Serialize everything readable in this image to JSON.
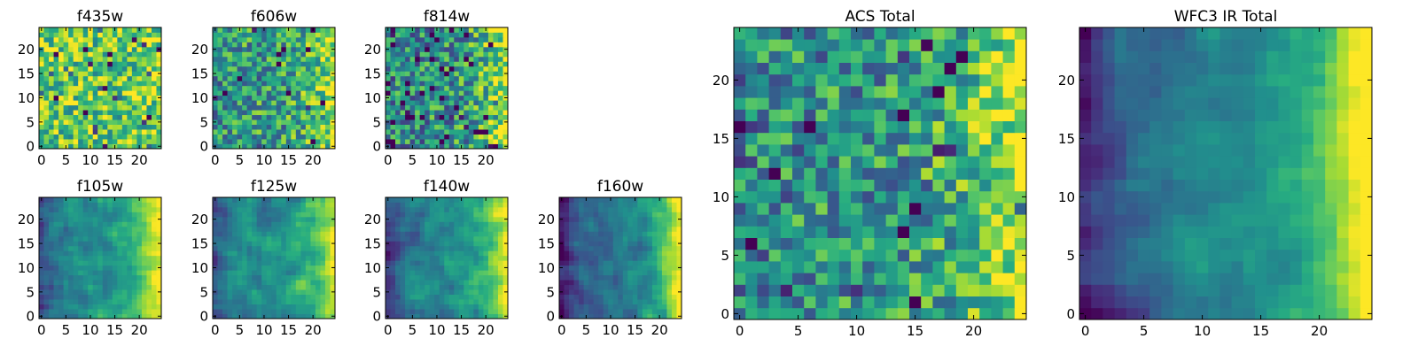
{
  "chart_data": [
    {
      "type": "heatmap",
      "title": "f435w",
      "xticks": [
        0,
        5,
        10,
        15,
        20
      ],
      "yticks": [
        0,
        5,
        10,
        15,
        20
      ],
      "xlim": [
        -0.5,
        24.5
      ],
      "ylim": [
        -0.5,
        24.5
      ],
      "size": 25,
      "colormap": "viridis",
      "grid": false
    },
    {
      "type": "heatmap",
      "title": "f606w",
      "xticks": [
        0,
        5,
        10,
        15,
        20
      ],
      "yticks": [
        0,
        5,
        10,
        15,
        20
      ],
      "xlim": [
        -0.5,
        24.5
      ],
      "ylim": [
        -0.5,
        24.5
      ],
      "size": 25,
      "colormap": "viridis",
      "grid": false
    },
    {
      "type": "heatmap",
      "title": "f814w",
      "xticks": [
        0,
        5,
        10,
        15,
        20
      ],
      "yticks": [
        0,
        5,
        10,
        15,
        20
      ],
      "xlim": [
        -0.5,
        24.5
      ],
      "ylim": [
        -0.5,
        24.5
      ],
      "size": 25,
      "colormap": "viridis",
      "grid": false
    },
    {
      "type": "heatmap",
      "title": "f105w",
      "xticks": [
        0,
        5,
        10,
        15,
        20
      ],
      "yticks": [
        0,
        5,
        10,
        15,
        20
      ],
      "xlim": [
        -0.5,
        24.5
      ],
      "ylim": [
        -0.5,
        24.5
      ],
      "size": 25,
      "colormap": "viridis",
      "grid": false
    },
    {
      "type": "heatmap",
      "title": "f125w",
      "xticks": [
        0,
        5,
        10,
        15,
        20
      ],
      "yticks": [
        0,
        5,
        10,
        15,
        20
      ],
      "xlim": [
        -0.5,
        24.5
      ],
      "ylim": [
        -0.5,
        24.5
      ],
      "size": 25,
      "colormap": "viridis",
      "grid": false
    },
    {
      "type": "heatmap",
      "title": "f140w",
      "xticks": [
        0,
        5,
        10,
        15,
        20
      ],
      "yticks": [
        0,
        5,
        10,
        15,
        20
      ],
      "xlim": [
        -0.5,
        24.5
      ],
      "ylim": [
        -0.5,
        24.5
      ],
      "size": 25,
      "colormap": "viridis",
      "grid": false
    },
    {
      "type": "heatmap",
      "title": "f160w",
      "xticks": [
        0,
        5,
        10,
        15,
        20
      ],
      "yticks": [
        0,
        5,
        10,
        15,
        20
      ],
      "xlim": [
        -0.5,
        24.5
      ],
      "ylim": [
        -0.5,
        24.5
      ],
      "size": 25,
      "colormap": "viridis",
      "grid": false
    },
    {
      "type": "heatmap",
      "title": "ACS Total",
      "xticks": [
        0,
        5,
        10,
        15,
        20
      ],
      "yticks": [
        0,
        5,
        10,
        15,
        20
      ],
      "xlim": [
        -0.5,
        24.5
      ],
      "ylim": [
        -0.5,
        24.5
      ],
      "size": 25,
      "colormap": "viridis",
      "grid": false
    },
    {
      "type": "heatmap",
      "title": "WFC3 IR Total",
      "xticks": [
        0,
        5,
        10,
        15,
        20
      ],
      "yticks": [
        0,
        5,
        10,
        15,
        20
      ],
      "xlim": [
        -0.5,
        24.5
      ],
      "ylim": [
        -0.5,
        24.5
      ],
      "size": 25,
      "colormap": "viridis",
      "grid": false
    }
  ]
}
